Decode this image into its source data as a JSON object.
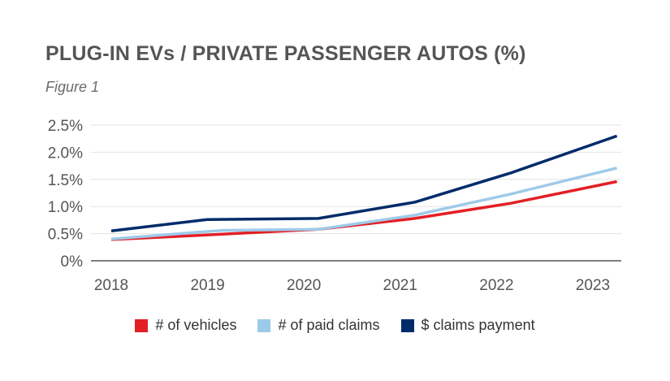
{
  "header": {
    "title": "PLUG-IN EVs / PRIVATE PASSENGER AUTOS (%)",
    "subtitle": "Figure 1"
  },
  "chart_data": {
    "type": "line",
    "title": "PLUG-IN EVs / PRIVATE PASSENGER AUTOS (%)",
    "subtitle": "Figure 1",
    "xlabel": "",
    "ylabel": "",
    "x": [
      "2018",
      "2019",
      "2020",
      "2021",
      "2022",
      "2023"
    ],
    "x_numeric": [
      2018,
      2019,
      2020,
      2021,
      2022,
      2023
    ],
    "ylim": [
      0,
      2.5
    ],
    "yticks": [
      0,
      0.5,
      1.0,
      1.5,
      2.0,
      2.5
    ],
    "ytick_labels": [
      "0%",
      "0.5%",
      "1.0%",
      "1.5%",
      "2.0%",
      "2.5%"
    ],
    "grid": "horizontal",
    "legend_position": "bottom",
    "series": [
      {
        "name": "# of vehicles",
        "color": "#e31f26",
        "points": [
          [
            2018.0,
            0.39
          ],
          [
            2019.15,
            0.49
          ],
          [
            2020.15,
            0.58
          ],
          [
            2021.15,
            0.78
          ],
          [
            2022.15,
            1.06
          ],
          [
            2023.25,
            1.46
          ]
        ]
      },
      {
        "name": "# of paid claims",
        "color": "#9ecae9",
        "points": [
          [
            2018.0,
            0.4
          ],
          [
            2019.15,
            0.56
          ],
          [
            2020.15,
            0.58
          ],
          [
            2021.15,
            0.84
          ],
          [
            2022.15,
            1.23
          ],
          [
            2023.25,
            1.71
          ]
        ]
      },
      {
        "name": "$ claims payment",
        "color": "#002b6a",
        "points": [
          [
            2018.0,
            0.55
          ],
          [
            2019.0,
            0.76
          ],
          [
            2020.15,
            0.78
          ],
          [
            2021.15,
            1.08
          ],
          [
            2022.15,
            1.62
          ],
          [
            2023.25,
            2.3
          ]
        ]
      }
    ]
  }
}
